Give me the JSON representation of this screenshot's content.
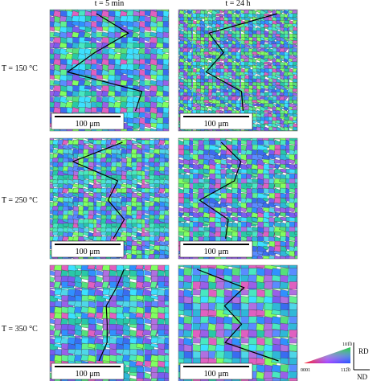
{
  "columns": [
    "t = 5 min",
    "t = 24 h"
  ],
  "rows": [
    "T = 150 °C",
    "T = 250 °C",
    "T = 350 °C"
  ],
  "panels": [
    {
      "scale_bar": "100 μm"
    },
    {
      "scale_bar": "100 μm"
    },
    {
      "scale_bar": "100 μm"
    },
    {
      "scale_bar": "100 μm"
    },
    {
      "scale_bar": "100 μm"
    },
    {
      "scale_bar": "100 μm"
    }
  ],
  "legend": {
    "rd": "RD",
    "nd": "ND",
    "corner_left": "0001",
    "corner_right": "112̅0",
    "corner_top": "101̅0"
  }
}
